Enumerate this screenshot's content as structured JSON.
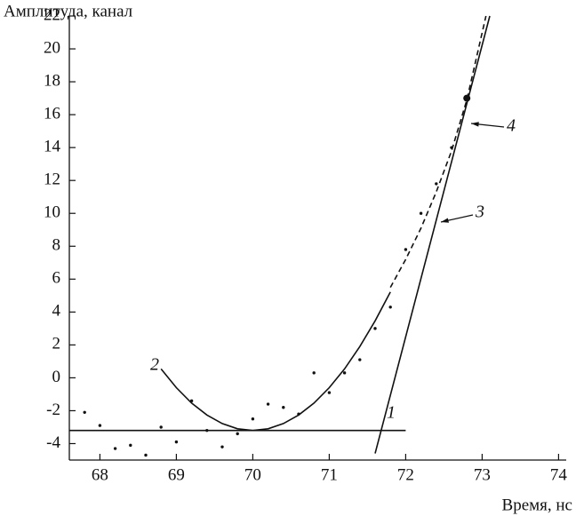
{
  "chart_data": {
    "type": "scatter",
    "x_label": "Время, нс",
    "y_label": "Амплитуда, канал",
    "xlim": [
      67.6,
      74.1
    ],
    "ylim": [
      -5,
      22
    ],
    "xticks": [
      68,
      69,
      70,
      71,
      72,
      73,
      74
    ],
    "yticks": [
      -4,
      -2,
      0,
      2,
      4,
      6,
      8,
      10,
      12,
      14,
      16,
      18,
      20,
      22
    ],
    "series": [
      {
        "kind": "points",
        "color": "#111",
        "x": [
          67.8,
          68.0,
          68.2,
          68.4,
          68.6,
          68.8,
          69.0,
          69.2,
          69.4,
          69.6,
          69.8,
          70.0,
          70.2,
          70.4,
          70.6,
          70.8,
          71.0,
          71.2,
          71.4,
          71.6,
          71.8,
          72.0,
          72.2,
          72.4,
          72.6
        ],
        "values": [
          -2.1,
          -2.9,
          -4.3,
          -4.1,
          -4.7,
          -3.0,
          -3.9,
          -1.4,
          -3.2,
          -4.2,
          -3.4,
          -2.5,
          -1.6,
          -1.8,
          -2.2,
          0.3,
          -0.9,
          0.3,
          1.1,
          3.0,
          4.3,
          7.8,
          10.0,
          11.8,
          14.0
        ]
      },
      {
        "kind": "line",
        "color": "#111",
        "x": [
          67.6,
          72.0
        ],
        "values": [
          -3.2,
          -3.2
        ]
      },
      {
        "kind": "line",
        "color": "#111",
        "x": [
          68.8,
          69.0,
          69.2,
          69.4,
          69.6,
          69.8,
          70.0,
          70.2,
          70.4,
          70.6,
          70.8,
          71.0,
          71.2,
          71.4,
          71.6,
          71.8
        ],
        "values": [
          0.54,
          -0.6,
          -1.54,
          -2.26,
          -2.78,
          -3.1,
          -3.2,
          -3.1,
          -2.78,
          -2.26,
          -1.54,
          -0.6,
          0.54,
          1.9,
          3.46,
          5.22
        ]
      },
      {
        "kind": "dashed",
        "color": "#111",
        "x": [
          71.8,
          72.0,
          72.2,
          72.4,
          72.6,
          72.8,
          73.05
        ],
        "values": [
          5.5,
          7.2,
          9.1,
          11.3,
          13.8,
          16.9,
          22.0
        ]
      },
      {
        "kind": "line",
        "color": "#111",
        "x": [
          71.6,
          73.1
        ],
        "values": [
          -4.6,
          22.0
        ]
      },
      {
        "kind": "big-point",
        "color": "#111",
        "x": [
          72.8
        ],
        "values": [
          17.0
        ]
      }
    ],
    "annotations": [
      "1",
      "2",
      "3",
      "4"
    ]
  }
}
